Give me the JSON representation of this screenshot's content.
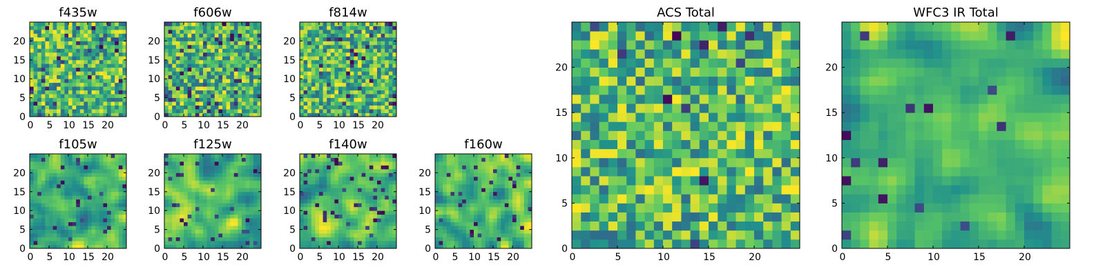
{
  "figure": {
    "colormap": "viridis",
    "colors": [
      "#440154",
      "#3b528b",
      "#21918c",
      "#5ec962",
      "#fde725"
    ]
  },
  "chart_data": [
    {
      "type": "heatmap",
      "title": "f435w",
      "grid": [
        25,
        25
      ],
      "xlim": [
        0,
        25
      ],
      "ylim": [
        0,
        25
      ],
      "xticks": [
        0,
        5,
        10,
        15,
        20
      ],
      "yticks": [
        0,
        5,
        10,
        15,
        20
      ],
      "seed": 11,
      "smooth": 0,
      "dark": 0.05
    },
    {
      "type": "heatmap",
      "title": "f606w",
      "grid": [
        25,
        25
      ],
      "xlim": [
        0,
        25
      ],
      "ylim": [
        0,
        25
      ],
      "xticks": [
        0,
        5,
        10,
        15,
        20
      ],
      "yticks": [
        0,
        5,
        10,
        15,
        20
      ],
      "seed": 23,
      "smooth": 0,
      "dark": 0.06
    },
    {
      "type": "heatmap",
      "title": "f814w",
      "grid": [
        25,
        25
      ],
      "xlim": [
        0,
        25
      ],
      "ylim": [
        0,
        25
      ],
      "xticks": [
        0,
        5,
        10,
        15,
        20
      ],
      "yticks": [
        0,
        5,
        10,
        15,
        20
      ],
      "seed": 37,
      "smooth": 0,
      "dark": 0.05
    },
    {
      "type": "heatmap",
      "title": "f105w",
      "grid": [
        25,
        25
      ],
      "xlim": [
        0,
        25
      ],
      "ylim": [
        0,
        25
      ],
      "xticks": [
        0,
        5,
        10,
        15,
        20
      ],
      "yticks": [
        0,
        5,
        10,
        15,
        20
      ],
      "seed": 41,
      "smooth": 2,
      "dark": 0.05
    },
    {
      "type": "heatmap",
      "title": "f125w",
      "grid": [
        25,
        25
      ],
      "xlim": [
        0,
        25
      ],
      "ylim": [
        0,
        25
      ],
      "xticks": [
        0,
        5,
        10,
        15,
        20
      ],
      "yticks": [
        0,
        5,
        10,
        15,
        20
      ],
      "seed": 53,
      "smooth": 2,
      "dark": 0.06
    },
    {
      "type": "heatmap",
      "title": "f140w",
      "grid": [
        25,
        25
      ],
      "xlim": [
        0,
        25
      ],
      "ylim": [
        0,
        25
      ],
      "xticks": [
        0,
        5,
        10,
        15,
        20
      ],
      "yticks": [
        0,
        5,
        10,
        15,
        20
      ],
      "seed": 67,
      "smooth": 2,
      "dark": 0.06
    },
    {
      "type": "heatmap",
      "title": "f160w",
      "grid": [
        25,
        25
      ],
      "xlim": [
        0,
        25
      ],
      "ylim": [
        0,
        25
      ],
      "xticks": [
        0,
        5,
        10,
        15,
        20
      ],
      "yticks": [
        0,
        5,
        10,
        15,
        20
      ],
      "seed": 79,
      "smooth": 2,
      "dark": 0.06
    },
    {
      "type": "heatmap",
      "title": "ACS Total",
      "grid": [
        25,
        25
      ],
      "xlim": [
        0,
        25
      ],
      "ylim": [
        0,
        25
      ],
      "xticks": [
        0,
        5,
        10,
        15,
        20
      ],
      "yticks": [
        0,
        5,
        10,
        15,
        20
      ],
      "seed": 97,
      "smooth": 0,
      "dark": 0.02
    },
    {
      "type": "heatmap",
      "title": "WFC3 IR Total",
      "grid": [
        25,
        25
      ],
      "xlim": [
        0,
        25
      ],
      "ylim": [
        0,
        25
      ],
      "xticks": [
        0,
        5,
        10,
        15,
        20
      ],
      "yticks": [
        0,
        5,
        10,
        15,
        20
      ],
      "seed": 113,
      "smooth": 2,
      "dark": 0.03
    }
  ]
}
